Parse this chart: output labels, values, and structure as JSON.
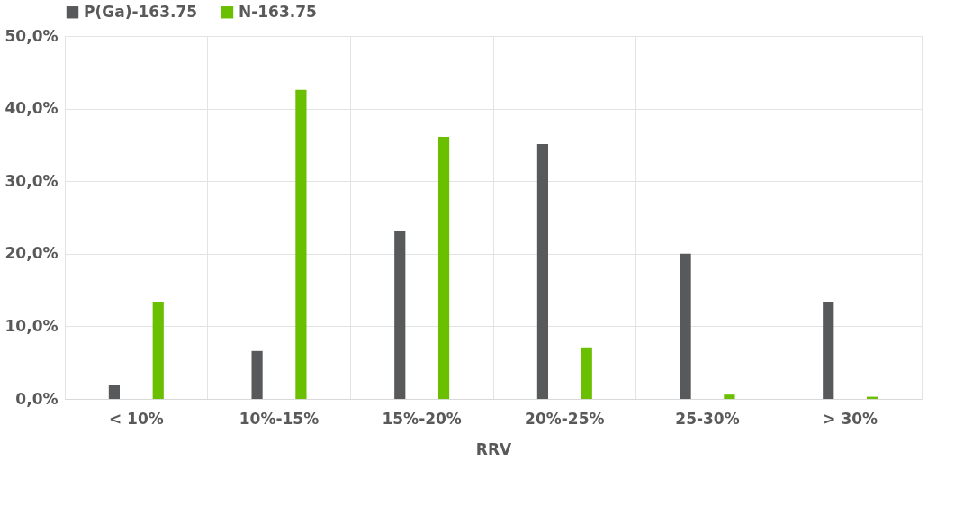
{
  "chart_data": {
    "type": "bar",
    "xlabel": "RRV",
    "categories": [
      "< 10%",
      "10%-15%",
      "15%-20%",
      "20%-25%",
      "25-30%",
      "> 30%"
    ],
    "series": [
      {
        "name": "P(Ga)-163.75",
        "color": "#58595b",
        "values": [
          1.9,
          6.6,
          23.2,
          35.1,
          20.0,
          13.4
        ]
      },
      {
        "name": "N-163.75",
        "color": "#6abf00",
        "values": [
          13.4,
          42.6,
          36.1,
          7.1,
          0.6,
          0.3
        ]
      }
    ],
    "ylim": [
      0,
      50
    ],
    "yticks": [
      {
        "value": 0,
        "label": "0,0%"
      },
      {
        "value": 10,
        "label": "10,0%"
      },
      {
        "value": 20,
        "label": "20,0%"
      },
      {
        "value": 30,
        "label": "30,0%"
      },
      {
        "value": 40,
        "label": "40,0%"
      },
      {
        "value": 50,
        "label": "50,0%"
      }
    ],
    "grid": true,
    "legend": "top"
  }
}
